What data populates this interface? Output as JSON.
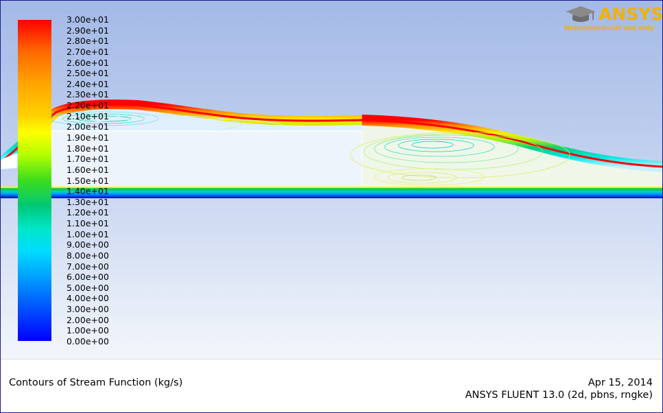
{
  "chart_data": {
    "type": "contour",
    "title": "Contours of Stream Function (kg/s)",
    "date": "Apr 15, 2014",
    "software": "ANSYS FLUENT 13.0 (2d, pbns, rngke)",
    "colorbar": {
      "min": 0,
      "max": 30,
      "colors_top_to_bottom": [
        "#ff0000",
        "#ffa500",
        "#ffff00",
        "#3cdc1e",
        "#00e6c8",
        "#00a0ff",
        "#0000ff"
      ],
      "tick_labels": [
        "3.00e+01",
        "2.90e+01",
        "2.80e+01",
        "2.70e+01",
        "2.60e+01",
        "2.50e+01",
        "2.40e+01",
        "2.30e+01",
        "2.20e+01",
        "2.10e+01",
        "2.00e+01",
        "1.90e+01",
        "1.80e+01",
        "1.70e+01",
        "1.60e+01",
        "1.50e+01",
        "1.40e+01",
        "1.30e+01",
        "1.20e+01",
        "1.10e+01",
        "1.00e+01",
        "9.00e+00",
        "8.00e+00",
        "7.00e+00",
        "6.00e+00",
        "5.00e+00",
        "4.00e+00",
        "3.00e+00",
        "2.00e+00",
        "1.00e+00",
        "0.00e+00"
      ]
    }
  },
  "logo": {
    "text": "ANSYS",
    "subtext": "Noncommercial use only",
    "color": "#f2b100"
  },
  "colors": {
    "frame_border": "#1a1a8a",
    "background_top": "#a3b9e6",
    "background_bottom": "#ffffff"
  }
}
